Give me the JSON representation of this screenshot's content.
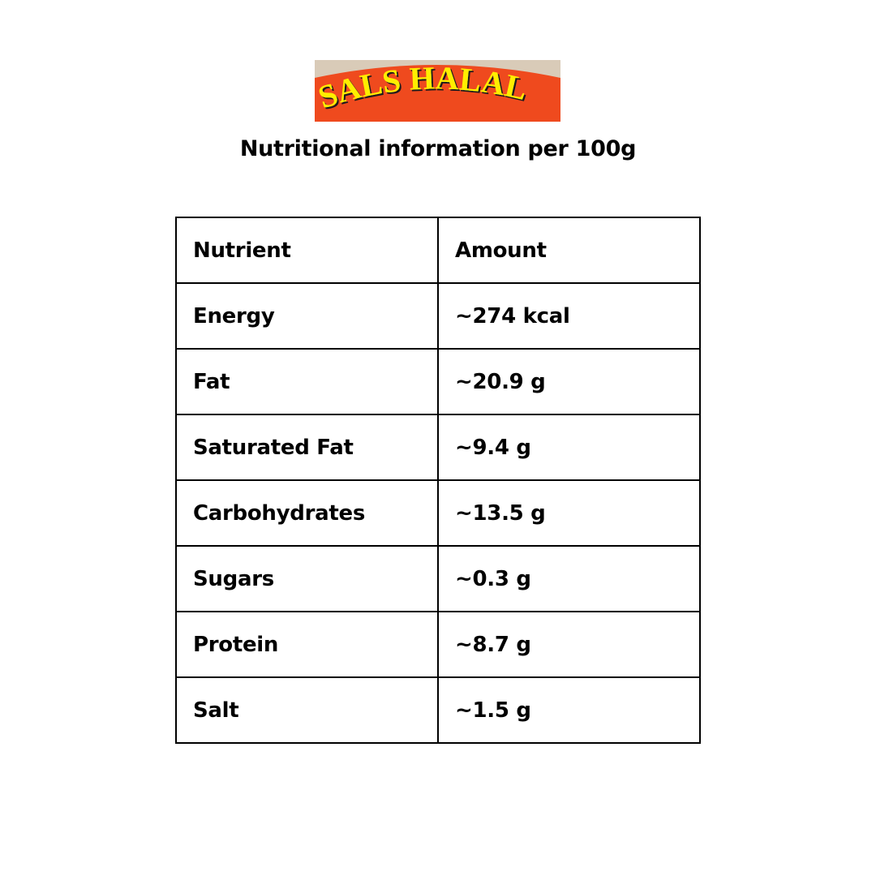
{
  "logo": {
    "text": "SALS HALAL",
    "colors": {
      "band": "#ef4a1e",
      "text": "#ffee00",
      "background": "#d9cbb8"
    }
  },
  "title": "Nutritional information per 100g",
  "table": {
    "headers": [
      "Nutrient",
      "Amount"
    ],
    "rows": [
      {
        "nutrient": "Energy",
        "amount": "~274 kcal"
      },
      {
        "nutrient": "Fat",
        "amount": "~20.9 g"
      },
      {
        "nutrient": "Saturated Fat",
        "amount": "~9.4 g"
      },
      {
        "nutrient": "Carbohydrates",
        "amount": "~13.5 g"
      },
      {
        "nutrient": "Sugars",
        "amount": "~0.3 g"
      },
      {
        "nutrient": "Protein",
        "amount": "~8.7 g"
      },
      {
        "nutrient": "Salt",
        "amount": "~1.5 g"
      }
    ]
  }
}
